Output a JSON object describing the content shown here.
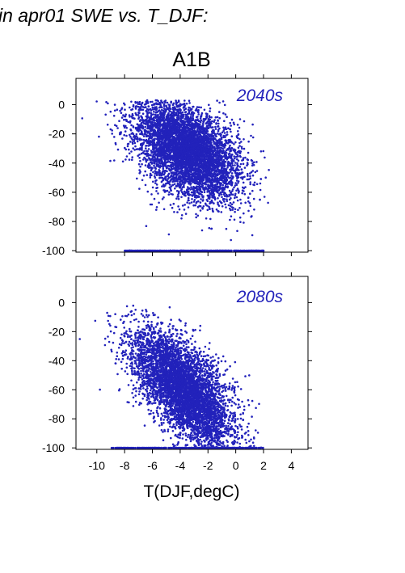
{
  "header": {
    "title_fragment": "in apr01 SWE vs. T_DJF:",
    "scenario": "A1B"
  },
  "colors": {
    "points": "#2222bb",
    "panel_label": "#2222bb",
    "axes": "#000000"
  },
  "chart_data": [
    {
      "type": "scatter",
      "panel_label": "2040s",
      "xlim": [
        -11.5,
        5.2
      ],
      "ylim": [
        -101,
        18
      ],
      "yticks": [
        0,
        -20,
        -40,
        -60,
        -80,
        -100
      ],
      "xticks": [
        -10,
        -8,
        -6,
        -4,
        -2,
        0,
        2,
        4
      ],
      "xticklabels_shown": false,
      "xlabel": "",
      "ylabel": "",
      "cloud_description": {
        "dense_center": {
          "x": -3.5,
          "y": -30
        },
        "x_range": [
          -11.5,
          2.5
        ],
        "y_range": [
          -100,
          3
        ],
        "floor_value": -100,
        "approx_points": 6000
      }
    },
    {
      "type": "scatter",
      "panel_label": "2080s",
      "xlim": [
        -11.5,
        5.2
      ],
      "ylim": [
        -101,
        18
      ],
      "yticks": [
        0,
        -20,
        -40,
        -60,
        -80,
        -100
      ],
      "xticks": [
        -10,
        -8,
        -6,
        -4,
        -2,
        0,
        2,
        4
      ],
      "xticklabels": [
        "-10",
        "-8",
        "-6",
        "-4",
        "-2",
        "0",
        "2",
        "4"
      ],
      "xlabel": "T(DJF,degC)",
      "ylabel": "",
      "cloud_description": {
        "dense_center": {
          "x": -3.8,
          "y": -65
        },
        "x_range": [
          -11.5,
          2.5
        ],
        "y_range": [
          -100,
          -2
        ],
        "floor_value": -100,
        "approx_points": 5500
      }
    }
  ]
}
